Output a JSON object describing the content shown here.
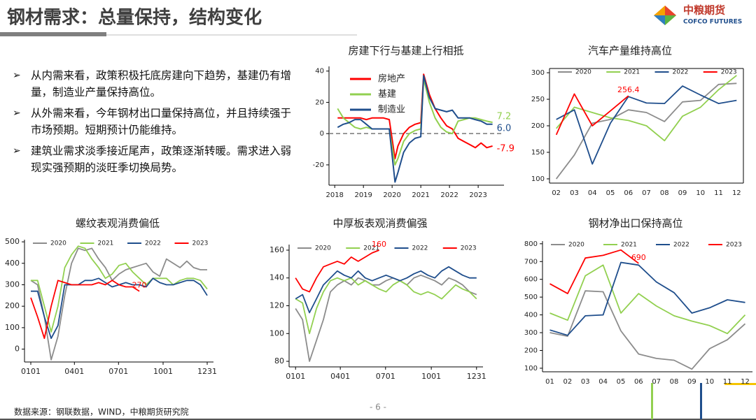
{
  "header": {
    "title": "钢材需求：总量保持，结构变化",
    "logo_cn": "中粮期货",
    "logo_en": "COFCO FUTURES"
  },
  "bullets": [
    "从内需来看，政策积极托底房建向下趋势，基建仍有增量，制造业产量保持高位。",
    "从外需来看，今年钢材出口量保持高位，并且持续强于市场预期。短期预计仍能维持。",
    "建筑业需求淡季接近尾声，政策逐渐转暖。需求进入弱现实强预期的淡旺季切换局势。"
  ],
  "source": "数据来源：钢联数据，WIND，中粮期货研究院",
  "page_number": "- 6 -",
  "chart_data": [
    {
      "type": "line",
      "title": "房建下行与基建上行相抵",
      "legend": "upper left",
      "reference_line": 0,
      "x": [
        2018.1,
        2018.3,
        2018.5,
        2018.7,
        2018.9,
        2019.1,
        2019.3,
        2019.5,
        2019.7,
        2019.9,
        2020.1,
        2020.2,
        2020.4,
        2020.6,
        2020.8,
        2021.0,
        2021.1,
        2021.3,
        2021.5,
        2021.7,
        2021.9,
        2022.1,
        2022.3,
        2022.5,
        2022.7,
        2022.9,
        2023.1,
        2023.3,
        2023.5
      ],
      "xlim": [
        2017.8,
        2023.9
      ],
      "xticks": [
        2018,
        2019,
        2020,
        2021,
        2022,
        2023
      ],
      "ylim": [
        -33,
        43
      ],
      "yticks": [
        -20,
        0,
        20,
        40
      ],
      "series": [
        {
          "name": "房地产",
          "color": "#ff0000",
          "values": [
            10,
            10,
            10,
            10,
            10,
            9,
            10,
            10,
            10,
            9,
            -16,
            -8,
            0,
            4,
            6,
            7,
            38,
            25,
            16,
            10,
            5,
            3,
            -3,
            -5,
            -7,
            -9,
            -6,
            -9,
            -7.9
          ],
          "value_labels": [
            null,
            null,
            null,
            null,
            null,
            null,
            null,
            null,
            null,
            null,
            null,
            null,
            null,
            null,
            null,
            null,
            null,
            null,
            null,
            null,
            null,
            null,
            null,
            null,
            null,
            null,
            null,
            null,
            "-7.9"
          ]
        },
        {
          "name": "基建",
          "color": "#92d050",
          "values": [
            16,
            10,
            7,
            4,
            3,
            4,
            3,
            3,
            3,
            3,
            -20,
            -16,
            -5,
            0,
            2,
            3,
            35,
            20,
            10,
            4,
            1,
            0,
            8,
            9,
            10,
            10,
            9,
            8,
            7.2
          ],
          "value_labels": [
            null,
            null,
            null,
            null,
            null,
            null,
            null,
            null,
            null,
            null,
            null,
            null,
            null,
            null,
            null,
            null,
            null,
            null,
            null,
            null,
            null,
            null,
            null,
            null,
            null,
            null,
            null,
            null,
            "7.2"
          ]
        },
        {
          "name": "制造业",
          "color": "#1f4e8c",
          "values": [
            4,
            6,
            7,
            9,
            9,
            6,
            3,
            3,
            3,
            3,
            -31,
            -25,
            -12,
            -6,
            -3,
            -2,
            37,
            23,
            16,
            15,
            14,
            15,
            10,
            10,
            10,
            9,
            8,
            6,
            6.0
          ],
          "value_labels": [
            null,
            null,
            null,
            null,
            null,
            null,
            null,
            null,
            null,
            null,
            null,
            null,
            null,
            null,
            null,
            null,
            null,
            null,
            null,
            null,
            null,
            null,
            null,
            null,
            null,
            null,
            null,
            null,
            "6.0"
          ]
        }
      ]
    },
    {
      "type": "line",
      "title": "汽车产量维持高位",
      "legend": "top",
      "categories": [
        "02",
        "03",
        "04",
        "05",
        "06",
        "07",
        "08",
        "09",
        "10",
        "11",
        "12"
      ],
      "ylim": [
        92,
        308
      ],
      "yticks": [
        100,
        150,
        200,
        250,
        300
      ],
      "series": [
        {
          "name": "2020",
          "color": "#8c8c8c",
          "values": [
            100,
            145,
            205,
            212,
            230,
            225,
            208,
            245,
            248,
            278,
            280
          ]
        },
        {
          "name": "2021",
          "color": "#92d050",
          "values": [
            195,
            235,
            225,
            215,
            210,
            200,
            172,
            218,
            235,
            268,
            295
          ]
        },
        {
          "name": "2022",
          "color": "#1f4e8c",
          "values": [
            212,
            230,
            128,
            205,
            255,
            243,
            242,
            275,
            258,
            242,
            248
          ]
        },
        {
          "name": "2023",
          "color": "#ff0000",
          "values": [
            183,
            260,
            200,
            228,
            256.4,
            null,
            null,
            null,
            null,
            null,
            null
          ],
          "value_labels": [
            null,
            null,
            null,
            null,
            "256.4",
            null,
            null,
            null,
            null,
            null,
            null
          ]
        }
      ]
    },
    {
      "type": "line",
      "title": "螺纹表观消费偏低",
      "legend": "top",
      "x": [
        1,
        15,
        29,
        43,
        57,
        71,
        85,
        99,
        113,
        127,
        141,
        155,
        169,
        183,
        197,
        211,
        225,
        239,
        253,
        267,
        281,
        295,
        309,
        323,
        337,
        351,
        365
      ],
      "xlim": [
        -12,
        378
      ],
      "xticks": [
        {
          "value": 1,
          "label": "0101"
        },
        {
          "value": 91,
          "label": "0401"
        },
        {
          "value": 182,
          "label": "0701"
        },
        {
          "value": 274,
          "label": "1001"
        },
        {
          "value": 365,
          "label": "1231"
        }
      ],
      "ylim": [
        -60,
        510
      ],
      "yticks": [
        0,
        100,
        200,
        300,
        400,
        500
      ],
      "series": [
        {
          "name": "2020",
          "color": "#8c8c8c",
          "values": [
            320,
            300,
            150,
            -50,
            60,
            250,
            400,
            470,
            460,
            470,
            420,
            380,
            320,
            350,
            370,
            380,
            390,
            400,
            360,
            340,
            420,
            400,
            380,
            410,
            380,
            370,
            370
          ]
        },
        {
          "name": "2021",
          "color": "#92d050",
          "values": [
            320,
            320,
            200,
            80,
            200,
            380,
            440,
            480,
            470,
            420,
            380,
            330,
            350,
            390,
            400,
            360,
            330,
            300,
            330,
            330,
            330,
            300,
            320,
            330,
            330,
            320,
            280
          ]
        },
        {
          "name": "2022",
          "color": "#1f4e8c",
          "values": [
            270,
            270,
            150,
            50,
            110,
            300,
            300,
            300,
            320,
            320,
            330,
            310,
            290,
            300,
            310,
            300,
            300,
            290,
            330,
            310,
            300,
            300,
            310,
            320,
            320,
            300,
            250
          ]
        },
        {
          "name": "2023",
          "color": "#ff0000",
          "values": [
            240,
            150,
            50,
            200,
            320,
            310,
            300,
            300,
            300,
            300,
            310,
            300,
            320,
            300,
            290,
            290,
            270,
            null,
            null,
            null,
            null,
            null,
            null,
            null,
            null,
            null,
            null
          ],
          "value_labels": [
            null,
            null,
            null,
            null,
            null,
            null,
            null,
            null,
            null,
            null,
            null,
            null,
            null,
            null,
            null,
            null,
            "270",
            null,
            null,
            null,
            null,
            null,
            null,
            null,
            null,
            null,
            null
          ]
        }
      ]
    },
    {
      "type": "line",
      "title": "中厚板表观消费偏强",
      "legend": "top",
      "x": [
        1,
        15,
        29,
        43,
        57,
        71,
        85,
        99,
        113,
        127,
        141,
        155,
        169,
        183,
        197,
        211,
        225,
        239,
        253,
        267,
        281,
        295,
        309,
        323,
        337,
        351,
        365
      ],
      "xlim": [
        -12,
        378
      ],
      "xticks": [
        {
          "value": 1,
          "label": "0101"
        },
        {
          "value": 91,
          "label": "0401"
        },
        {
          "value": 182,
          "label": "0701"
        },
        {
          "value": 274,
          "label": "1001"
        },
        {
          "value": 365,
          "label": "1231"
        }
      ],
      "ylim": [
        76,
        164
      ],
      "yticks": [
        80,
        100,
        120,
        140,
        160
      ],
      "series": [
        {
          "name": "2020",
          "color": "#8c8c8c",
          "values": [
            118,
            110,
            80,
            95,
            110,
            130,
            135,
            138,
            135,
            140,
            138,
            135,
            135,
            138,
            140,
            138,
            135,
            140,
            142,
            140,
            138,
            135,
            140,
            138,
            135,
            130,
            128
          ]
        },
        {
          "name": "2021",
          "color": "#92d050",
          "values": [
            125,
            122,
            100,
            118,
            130,
            138,
            140,
            138,
            140,
            135,
            138,
            135,
            132,
            130,
            135,
            138,
            135,
            130,
            128,
            130,
            128,
            125,
            130,
            135,
            132,
            130,
            125
          ]
        },
        {
          "name": "2022",
          "color": "#1f4e8c",
          "values": [
            125,
            128,
            115,
            125,
            135,
            140,
            145,
            142,
            140,
            145,
            140,
            138,
            140,
            142,
            140,
            138,
            140,
            143,
            145,
            142,
            140,
            145,
            148,
            145,
            142,
            140,
            140
          ]
        },
        {
          "name": "2023",
          "color": "#ff0000",
          "values": [
            140,
            132,
            130,
            140,
            148,
            150,
            152,
            150,
            155,
            152,
            155,
            158,
            160,
            null,
            null,
            null,
            null,
            null,
            null,
            null,
            null,
            null,
            null,
            null,
            null,
            null,
            null
          ],
          "value_labels": [
            null,
            null,
            null,
            null,
            null,
            null,
            null,
            null,
            null,
            null,
            null,
            null,
            "160",
            null,
            null,
            null,
            null,
            null,
            null,
            null,
            null,
            null,
            null,
            null,
            null,
            null,
            null
          ]
        }
      ]
    },
    {
      "type": "line",
      "title": "钢材净出口保持高位",
      "legend": "top",
      "categories": [
        "01",
        "02",
        "03",
        "04",
        "05",
        "06",
        "07",
        "08",
        "09",
        "10",
        "11",
        "12"
      ],
      "ylim": [
        80,
        815
      ],
      "yticks": [
        100,
        200,
        300,
        400,
        500,
        600,
        700,
        800
      ],
      "series": [
        {
          "name": "2020",
          "color": "#8c8c8c",
          "values": [
            300,
            280,
            535,
            530,
            310,
            180,
            155,
            145,
            95,
            210,
            260,
            350
          ]
        },
        {
          "name": "2021",
          "color": "#92d050",
          "values": [
            410,
            370,
            620,
            680,
            410,
            520,
            450,
            395,
            365,
            340,
            295,
            400
          ]
        },
        {
          "name": "2022",
          "color": "#1f4e8c",
          "values": [
            315,
            285,
            395,
            400,
            695,
            680,
            585,
            525,
            410,
            440,
            485,
            470
          ]
        },
        {
          "name": "2023",
          "color": "#ff0000",
          "values": [
            575,
            520,
            720,
            735,
            765,
            690,
            null,
            null,
            null,
            null,
            null,
            null
          ],
          "value_labels": [
            null,
            null,
            null,
            null,
            null,
            "690",
            null,
            null,
            null,
            null,
            null,
            null
          ]
        }
      ]
    }
  ]
}
